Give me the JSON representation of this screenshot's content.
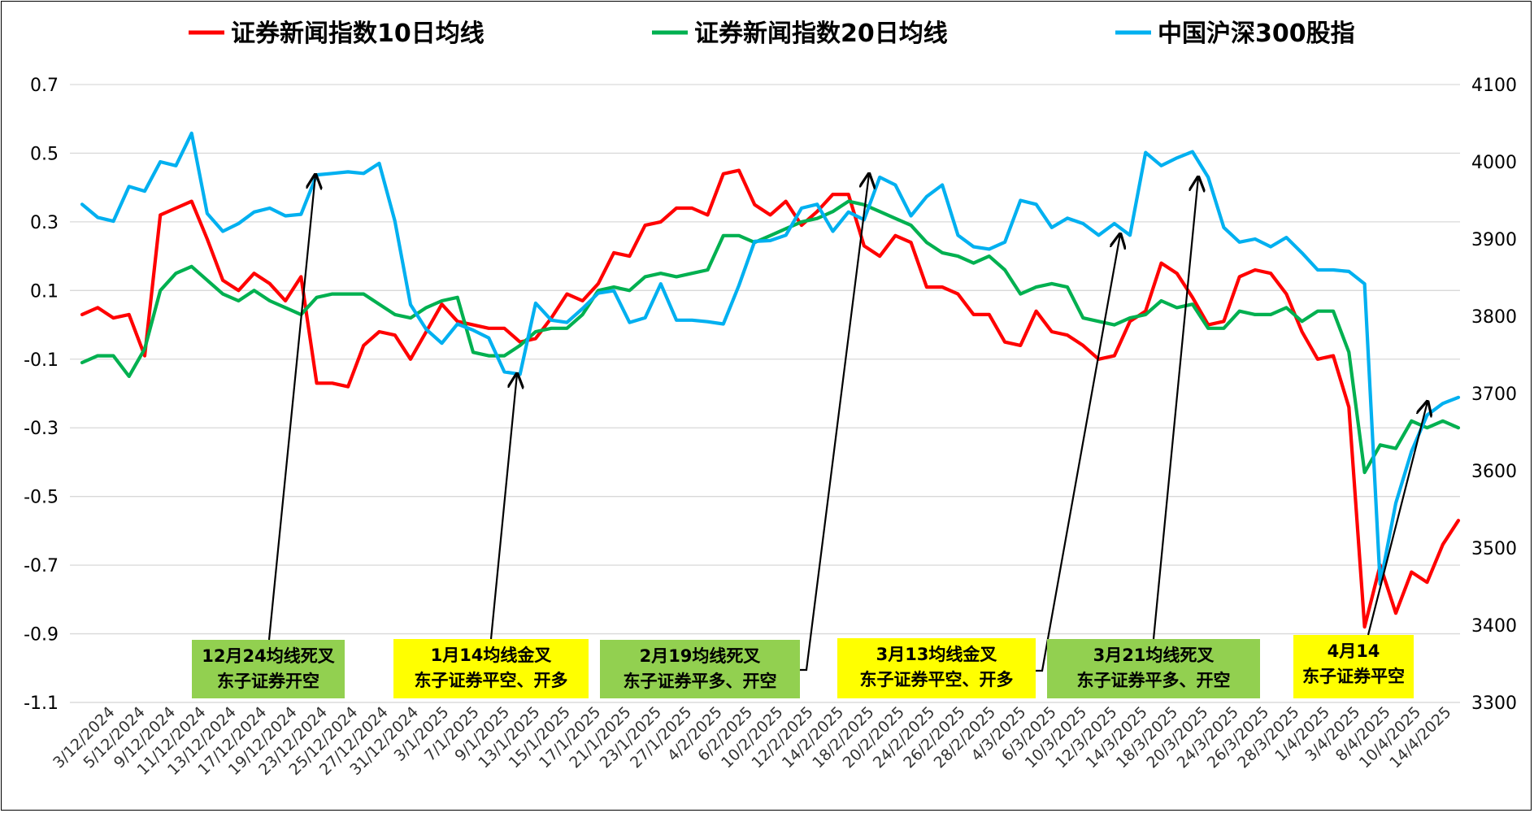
{
  "chart_data": {
    "type": "line",
    "title": "",
    "legend": [
      {
        "name": "证券新闻指数10日均线",
        "color": "#FF0000"
      },
      {
        "name": "证券新闻指数20日均线",
        "color": "#00B050"
      },
      {
        "name": "中国沪深300股指",
        "color": "#00B0F0"
      }
    ],
    "legend_position": "top",
    "grid": true,
    "y_left": {
      "ticks": [
        "0.7",
        "0.5",
        "0.3",
        "0.1",
        "-0.1",
        "-0.3",
        "-0.5",
        "-0.7",
        "-0.9",
        "-1.1"
      ],
      "ylim": [
        -1.1,
        0.7
      ]
    },
    "y_right": {
      "ticks": [
        "4100",
        "4000",
        "3900",
        "3800",
        "3700",
        "3600",
        "3500",
        "3400",
        "3300"
      ],
      "ylim": [
        3300,
        4100
      ]
    },
    "x_tick_labels": [
      "3/12/2024",
      "5/12/2024",
      "9/12/2024",
      "11/12/2024",
      "13/12/2024",
      "17/12/2024",
      "19/12/2024",
      "23/12/2024",
      "25/12/2024",
      "27/12/2024",
      "31/12/2024",
      "3/1/2025",
      "7/1/2025",
      "9/1/2025",
      "13/1/2025",
      "15/1/2025",
      "17/1/2025",
      "21/1/2025",
      "23/1/2025",
      "27/1/2025",
      "4/2/2025",
      "6/2/2025",
      "10/2/2025",
      "12/2/2025",
      "14/2/2025",
      "18/2/2025",
      "20/2/2025",
      "24/2/2025",
      "26/2/2025",
      "28/2/2025",
      "4/3/2025",
      "6/3/2025",
      "10/3/2025",
      "12/3/2025",
      "14/3/2025",
      "18/3/2025",
      "20/3/2025",
      "24/3/2025",
      "26/3/2025",
      "28/3/2025",
      "1/4/2025",
      "3/4/2025",
      "8/4/2025",
      "10/4/2025",
      "14/4/2025"
    ],
    "series": [
      {
        "name": "证券新闻指数10日均线",
        "axis": "left",
        "color": "#FF0000",
        "values": [
          0.03,
          0.05,
          0.02,
          0.03,
          -0.09,
          0.32,
          0.34,
          0.36,
          0.25,
          0.13,
          0.1,
          0.15,
          0.12,
          0.07,
          0.14,
          -0.17,
          -0.17,
          -0.18,
          -0.06,
          -0.02,
          -0.03,
          -0.1,
          -0.02,
          0.06,
          0.01,
          0.0,
          -0.01,
          -0.01,
          -0.05,
          -0.04,
          0.02,
          0.09,
          0.07,
          0.12,
          0.21,
          0.2,
          0.29,
          0.3,
          0.34,
          0.34,
          0.32,
          0.44,
          0.45,
          0.35,
          0.32,
          0.36,
          0.29,
          0.33,
          0.38,
          0.38,
          0.23,
          0.2,
          0.26,
          0.24,
          0.11,
          0.11,
          0.09,
          0.03,
          0.03,
          -0.05,
          -0.06,
          0.04,
          -0.02,
          -0.03,
          -0.06,
          -0.1,
          -0.09,
          0.01,
          0.04,
          0.18,
          0.15,
          0.08,
          0.0,
          0.01,
          0.14,
          0.16,
          0.15,
          0.09,
          -0.02,
          -0.1,
          -0.09,
          -0.24,
          -0.88,
          -0.7,
          -0.84,
          -0.72,
          -0.75,
          -0.64,
          -0.57
        ]
      },
      {
        "name": "证券新闻指数20日均线",
        "axis": "left",
        "color": "#00B050",
        "values": [
          -0.11,
          -0.09,
          -0.09,
          -0.15,
          -0.07,
          0.1,
          0.15,
          0.17,
          0.13,
          0.09,
          0.07,
          0.1,
          0.07,
          0.05,
          0.03,
          0.08,
          0.09,
          0.09,
          0.09,
          0.06,
          0.03,
          0.02,
          0.05,
          0.07,
          0.08,
          -0.08,
          -0.09,
          -0.09,
          -0.06,
          -0.02,
          -0.01,
          -0.01,
          0.03,
          0.1,
          0.11,
          0.1,
          0.14,
          0.15,
          0.14,
          0.15,
          0.16,
          0.26,
          0.26,
          0.24,
          0.26,
          0.28,
          0.3,
          0.31,
          0.33,
          0.36,
          0.35,
          0.33,
          0.31,
          0.29,
          0.24,
          0.21,
          0.2,
          0.18,
          0.2,
          0.16,
          0.09,
          0.11,
          0.12,
          0.11,
          0.02,
          0.01,
          0.0,
          0.02,
          0.03,
          0.07,
          0.05,
          0.06,
          -0.01,
          -0.01,
          0.04,
          0.03,
          0.03,
          0.05,
          0.01,
          0.04,
          0.04,
          -0.08,
          -0.43,
          -0.35,
          -0.36,
          -0.28,
          -0.3,
          -0.28,
          -0.3
        ]
      },
      {
        "name": "中国沪深300股指",
        "axis": "right",
        "color": "#00B0F0",
        "values": [
          3945,
          3928,
          3923,
          3968,
          3962,
          4000,
          3995,
          4037,
          3933,
          3910,
          3920,
          3935,
          3940,
          3930,
          3932,
          3983,
          3985,
          3987,
          3985,
          3998,
          3923,
          3815,
          3783,
          3765,
          3790,
          3782,
          3772,
          3728,
          3725,
          3817,
          3795,
          3792,
          3810,
          3830,
          3833,
          3792,
          3798,
          3842,
          3795,
          3795,
          3793,
          3790,
          3840,
          3897,
          3898,
          3905,
          3940,
          3945,
          3910,
          3935,
          3925,
          3980,
          3970,
          3930,
          3955,
          3970,
          3905,
          3890,
          3887,
          3896,
          3950,
          3945,
          3915,
          3927,
          3920,
          3905,
          3920,
          3905,
          4012,
          3995,
          4005,
          4013,
          3980,
          3915,
          3896,
          3900,
          3890,
          3902,
          3882,
          3860,
          3860,
          3858,
          3842,
          3453,
          3558,
          3625,
          3672,
          3687,
          3695
        ]
      }
    ],
    "annotations": [
      {
        "lines": [
          "12月24均线死叉",
          "东子证券开空"
        ],
        "bg": "#92D050"
      },
      {
        "lines": [
          "1月14均线金叉",
          "东子证券平空、开多"
        ],
        "bg": "#FFFF00"
      },
      {
        "lines": [
          "2月19均线死叉",
          "东子证券平多、开空"
        ],
        "bg": "#92D050"
      },
      {
        "lines": [
          "3月13均线金叉",
          "东子证券平空、开多"
        ],
        "bg": "#FFFF00"
      },
      {
        "lines": [
          "3月21均线死叉",
          "东子证券平多、开空"
        ],
        "bg": "#92D050"
      },
      {
        "lines": [
          "4月14",
          "东子证券平空"
        ],
        "bg": "#FFFF00"
      }
    ]
  }
}
